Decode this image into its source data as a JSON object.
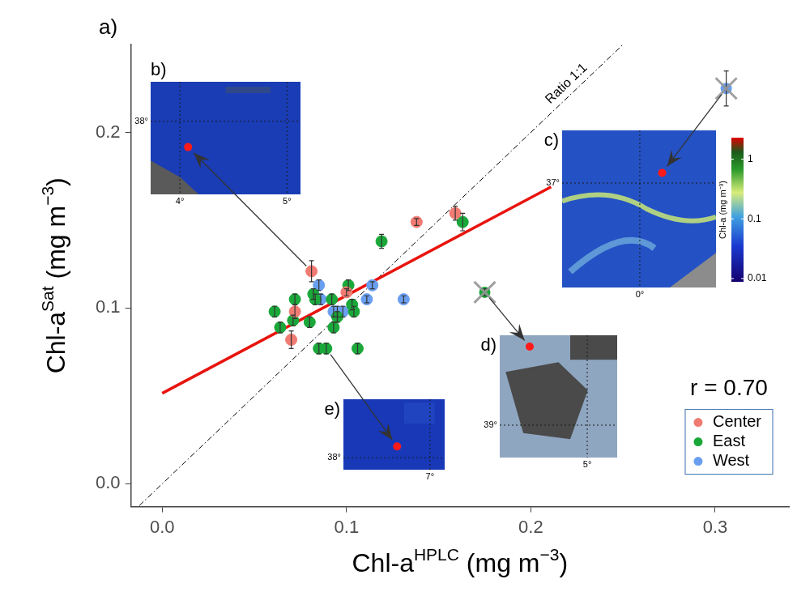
{
  "chart_data": {
    "type": "scatter",
    "panel_label": "a)",
    "x_label": [
      {
        "text": "Chl-a",
        "sup": false
      },
      {
        "text": "HPLC",
        "sup": true
      },
      {
        "text": " (mg m",
        "sup": false
      },
      {
        "text": "−3",
        "sup": true
      },
      {
        "text": ")",
        "sup": false
      }
    ],
    "y_label": [
      {
        "text": "Chl-a",
        "sup": false
      },
      {
        "text": "Sat",
        "sup": true
      },
      {
        "text": " (mg m",
        "sup": false
      },
      {
        "text": "−3",
        "sup": true
      },
      {
        "text": ")",
        "sup": false
      }
    ],
    "xlim": [
      -0.017,
      0.34
    ],
    "ylim": [
      -0.013,
      0.25
    ],
    "xticks": [
      {
        "value": 0,
        "label": "0.0"
      },
      0.1,
      0.2,
      0.3
    ],
    "yticks": [
      {
        "value": 0,
        "label": "0.0"
      },
      0.1,
      0.2
    ],
    "grid": false,
    "legend": "lower right",
    "series": [
      {
        "name": "Center",
        "color": "#f07b72",
        "marker": "circle",
        "x": [
          0.081,
          0.072,
          0.07,
          0.138,
          0.159,
          0.1
        ],
        "values": [
          0.121,
          0.098,
          0.082,
          0.149,
          0.154,
          0.109
        ],
        "errors": [
          0.006,
          0.004,
          0.005,
          0.002,
          0.004,
          0.002
        ]
      },
      {
        "name": "East",
        "color": "#1aa83a",
        "marker": "circle",
        "x": [
          0.061,
          0.064,
          0.071,
          0.072,
          0.08,
          0.082,
          0.083,
          0.085,
          0.089,
          0.092,
          0.093,
          0.095,
          0.101,
          0.103,
          0.104,
          0.106,
          0.119,
          0.163
        ],
        "values": [
          0.098,
          0.089,
          0.093,
          0.105,
          0.092,
          0.108,
          0.105,
          0.077,
          0.077,
          0.105,
          0.089,
          0.095,
          0.113,
          0.102,
          0.098,
          0.077,
          0.138,
          0.149
        ],
        "errors": [
          0.003,
          0.003,
          0.003,
          0.003,
          0.003,
          0.003,
          0.003,
          0.003,
          0.003,
          0.003,
          0.003,
          0.003,
          0.003,
          0.003,
          0.003,
          0.003,
          0.004,
          0.005
        ]
      },
      {
        "name": "West",
        "color": "#6a9ff0",
        "marker": "circle",
        "x": [
          0.085,
          0.086,
          0.093,
          0.095,
          0.098,
          0.111,
          0.114,
          0.131
        ],
        "values": [
          0.113,
          0.105,
          0.098,
          0.098,
          0.098,
          0.105,
          0.113,
          0.105
        ],
        "errors": [
          0.003,
          0.003,
          0.003,
          0.003,
          0.003,
          0.002,
          0.002,
          0.002
        ]
      }
    ],
    "excluded_points": [
      {
        "series": "West",
        "x": 0.306,
        "y": 0.225,
        "error": 0.01
      },
      {
        "series": "East",
        "x": 0.175,
        "y": 0.109,
        "error": 0.002
      }
    ],
    "fit_line": {
      "x": [
        0,
        0.211
      ],
      "values": [
        0.0515,
        0.169
      ],
      "color": "#e8140e",
      "line_style": "solid"
    },
    "reference_line": {
      "label": "Ratio 1:1",
      "x": [
        -0.017,
        0.25
      ],
      "values": [
        -0.017,
        0.25
      ],
      "color": "#000000",
      "line_style": "dashdot"
    },
    "annotation": "r = 0.70",
    "insets": [
      {
        "label": "b)",
        "lat_labels": [
          "38°"
        ],
        "lon_labels": [
          "4°",
          "5°"
        ],
        "linked_point": {
          "x": 0.081,
          "y": 0.121
        }
      },
      {
        "label": "c)",
        "lat_labels": [
          "37°"
        ],
        "lon_labels": [
          "0°"
        ],
        "linked_point": {
          "x": 0.306,
          "y": 0.225
        }
      },
      {
        "label": "d)",
        "lat_labels": [
          "39°"
        ],
        "lon_labels": [
          "5°"
        ],
        "linked_point": {
          "x": 0.175,
          "y": 0.109
        }
      },
      {
        "label": "e)",
        "lat_labels": [
          "38°"
        ],
        "lon_labels": [
          "7°"
        ],
        "linked_point": {
          "x": 0.089,
          "y": 0.077
        }
      }
    ],
    "colorbar": {
      "label": "Chl-a (mg m⁻³)",
      "log": true,
      "range": [
        0.0088,
        2.3
      ],
      "ticks": [
        0.01,
        0.1,
        1
      ]
    }
  }
}
